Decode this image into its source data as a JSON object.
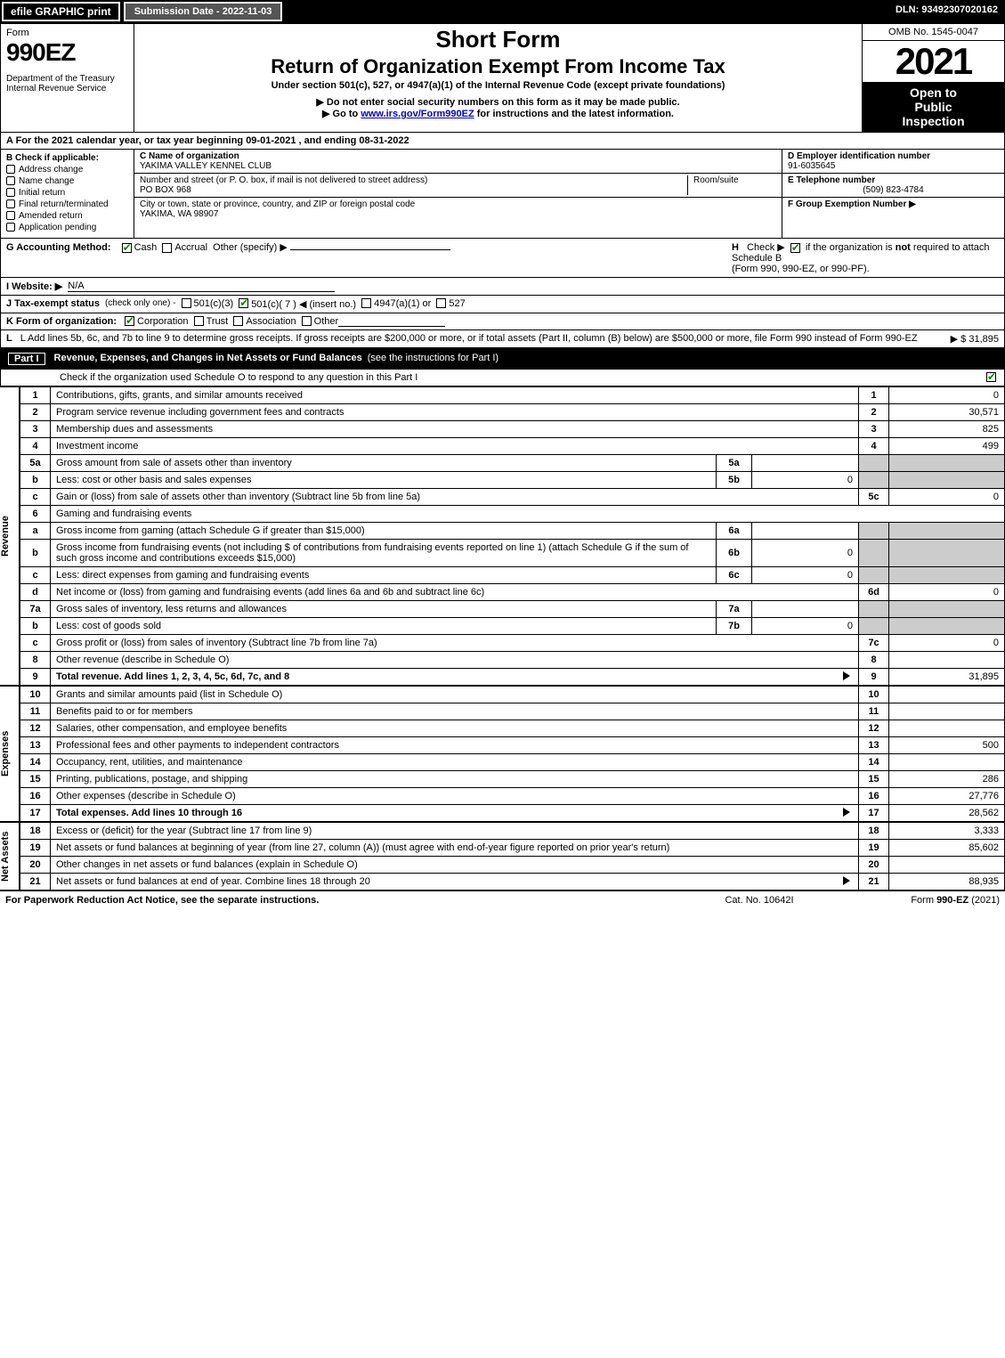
{
  "topbar": {
    "efile": "efile GRAPHIC print",
    "submission": "Submission Date - 2022-11-03",
    "dln": "DLN: 93492307020162"
  },
  "header": {
    "form_label": "Form",
    "form_number": "990EZ",
    "dept": "Department of the Treasury",
    "irs": "Internal Revenue Service",
    "short_form": "Short Form",
    "return_title": "Return of Organization Exempt From Income Tax",
    "under": "Under section 501(c), 527, or 4947(a)(1) of the Internal Revenue Code (except private foundations)",
    "donot": "▶ Do not enter social security numbers on this form as it may be made public.",
    "goto_prefix": "▶ Go to ",
    "goto_link": "www.irs.gov/Form990EZ",
    "goto_suffix": " for instructions and the latest information.",
    "omb": "OMB No. 1545-0047",
    "year": "2021",
    "open1": "Open to",
    "open2": "Public",
    "open3": "Inspection"
  },
  "lineA": "A  For the 2021 calendar year, or tax year beginning 09-01-2021 , and ending 08-31-2022",
  "sectionB": {
    "title": "B  Check if applicable:",
    "items": [
      "Address change",
      "Name change",
      "Initial return",
      "Final return/terminated",
      "Amended return",
      "Application pending"
    ]
  },
  "sectionC": {
    "name_label": "C Name of organization",
    "name": "YAKIMA VALLEY KENNEL CLUB",
    "street_label": "Number and street (or P. O. box, if mail is not delivered to street address)",
    "room_label": "Room/suite",
    "street": "PO BOX 968",
    "city_label": "City or town, state or province, country, and ZIP or foreign postal code",
    "city": "YAKIMA, WA  98907"
  },
  "sectionD": {
    "label": "D Employer identification number",
    "value": "91-6035645",
    "e_label": "E Telephone number",
    "e_value": "(509) 823-4784",
    "f_label": "F Group Exemption Number  ▶"
  },
  "lineG": {
    "label": "G Accounting Method:",
    "cash": "Cash",
    "accrual": "Accrual",
    "other": "Other (specify) ▶"
  },
  "lineH": {
    "label": "H",
    "text1": "Check ▶ ",
    "text2": " if the organization is ",
    "not": "not",
    "text3": " required to attach Schedule B",
    "text4": "(Form 990, 990-EZ, or 990-PF)."
  },
  "lineI": {
    "label": "I Website: ▶",
    "value": "N/A"
  },
  "lineJ": {
    "label": "J Tax-exempt status",
    "note": "(check only one) -",
    "o1": "501(c)(3)",
    "o2": "501(c)( 7 ) ◀ (insert no.)",
    "o3": "4947(a)(1) or",
    "o4": "527"
  },
  "lineK": {
    "label": "K Form of organization:",
    "opts": [
      "Corporation",
      "Trust",
      "Association",
      "Other"
    ]
  },
  "lineL": {
    "text": "L Add lines 5b, 6c, and 7b to line 9 to determine gross receipts. If gross receipts are $200,000 or more, or if total assets (Part II, column (B) below) are $500,000 or more, file Form 990 instead of Form 990-EZ",
    "amount": "▶ $ 31,895"
  },
  "partI": {
    "tag": "Part I",
    "title": "Revenue, Expenses, and Changes in Net Assets or Fund Balances",
    "note": "(see the instructions for Part I)",
    "check": "Check if the organization used Schedule O to respond to any question in this Part I"
  },
  "revenue_label": "Revenue",
  "expenses_label": "Expenses",
  "netassets_label": "Net Assets",
  "revenue_rows": [
    {
      "n": "1",
      "desc": "Contributions, gifts, grants, and similar amounts received",
      "ln": "1",
      "amt": "0"
    },
    {
      "n": "2",
      "desc": "Program service revenue including government fees and contracts",
      "ln": "2",
      "amt": "30,571"
    },
    {
      "n": "3",
      "desc": "Membership dues and assessments",
      "ln": "3",
      "amt": "825"
    },
    {
      "n": "4",
      "desc": "Investment income",
      "ln": "4",
      "amt": "499"
    },
    {
      "n": "5a",
      "desc": "Gross amount from sale of assets other than inventory",
      "sub": "5a",
      "subval": "",
      "grey": true
    },
    {
      "n": "b",
      "desc": "Less: cost or other basis and sales expenses",
      "sub": "5b",
      "subval": "0",
      "grey": true
    },
    {
      "n": "c",
      "desc": "Gain or (loss) from sale of assets other than inventory (Subtract line 5b from line 5a)",
      "ln": "5c",
      "amt": "0"
    },
    {
      "n": "6",
      "desc": "Gaming and fundraising events",
      "greyfull": true
    },
    {
      "n": "a",
      "desc": "Gross income from gaming (attach Schedule G if greater than $15,000)",
      "sub": "6a",
      "subval": "",
      "grey": true
    },
    {
      "n": "b",
      "desc": "Gross income from fundraising events (not including $                    of contributions from fundraising events reported on line 1) (attach Schedule G if the sum of such gross income and contributions exceeds $15,000)",
      "sub": "6b",
      "subval": "0",
      "grey": true
    },
    {
      "n": "c",
      "desc": "Less: direct expenses from gaming and fundraising events",
      "sub": "6c",
      "subval": "0",
      "grey": true
    },
    {
      "n": "d",
      "desc": "Net income or (loss) from gaming and fundraising events (add lines 6a and 6b and subtract line 6c)",
      "ln": "6d",
      "amt": "0"
    },
    {
      "n": "7a",
      "desc": "Gross sales of inventory, less returns and allowances",
      "sub": "7a",
      "subval": "",
      "grey": true
    },
    {
      "n": "b",
      "desc": "Less: cost of goods sold",
      "sub": "7b",
      "subval": "0",
      "grey": true
    },
    {
      "n": "c",
      "desc": "Gross profit or (loss) from sales of inventory (Subtract line 7b from line 7a)",
      "ln": "7c",
      "amt": "0"
    },
    {
      "n": "8",
      "desc": "Other revenue (describe in Schedule O)",
      "ln": "8",
      "amt": ""
    },
    {
      "n": "9",
      "desc": "Total revenue. Add lines 1, 2, 3, 4, 5c, 6d, 7c, and 8",
      "ln": "9",
      "amt": "31,895",
      "bold": true,
      "arrow": true
    }
  ],
  "expense_rows": [
    {
      "n": "10",
      "desc": "Grants and similar amounts paid (list in Schedule O)",
      "ln": "10",
      "amt": ""
    },
    {
      "n": "11",
      "desc": "Benefits paid to or for members",
      "ln": "11",
      "amt": ""
    },
    {
      "n": "12",
      "desc": "Salaries, other compensation, and employee benefits",
      "ln": "12",
      "amt": ""
    },
    {
      "n": "13",
      "desc": "Professional fees and other payments to independent contractors",
      "ln": "13",
      "amt": "500"
    },
    {
      "n": "14",
      "desc": "Occupancy, rent, utilities, and maintenance",
      "ln": "14",
      "amt": ""
    },
    {
      "n": "15",
      "desc": "Printing, publications, postage, and shipping",
      "ln": "15",
      "amt": "286"
    },
    {
      "n": "16",
      "desc": "Other expenses (describe in Schedule O)",
      "ln": "16",
      "amt": "27,776"
    },
    {
      "n": "17",
      "desc": "Total expenses. Add lines 10 through 16",
      "ln": "17",
      "amt": "28,562",
      "bold": true,
      "arrow": true
    }
  ],
  "netasset_rows": [
    {
      "n": "18",
      "desc": "Excess or (deficit) for the year (Subtract line 17 from line 9)",
      "ln": "18",
      "amt": "3,333"
    },
    {
      "n": "19",
      "desc": "Net assets or fund balances at beginning of year (from line 27, column (A)) (must agree with end-of-year figure reported on prior year's return)",
      "ln": "19",
      "amt": "85,602"
    },
    {
      "n": "20",
      "desc": "Other changes in net assets or fund balances (explain in Schedule O)",
      "ln": "20",
      "amt": ""
    },
    {
      "n": "21",
      "desc": "Net assets or fund balances at end of year. Combine lines 18 through 20",
      "ln": "21",
      "amt": "88,935",
      "arrow": true
    }
  ],
  "footer": {
    "left": "For Paperwork Reduction Act Notice, see the separate instructions.",
    "mid": "Cat. No. 10642I",
    "right_prefix": "Form ",
    "right_form": "990-EZ",
    "right_suffix": " (2021)"
  }
}
